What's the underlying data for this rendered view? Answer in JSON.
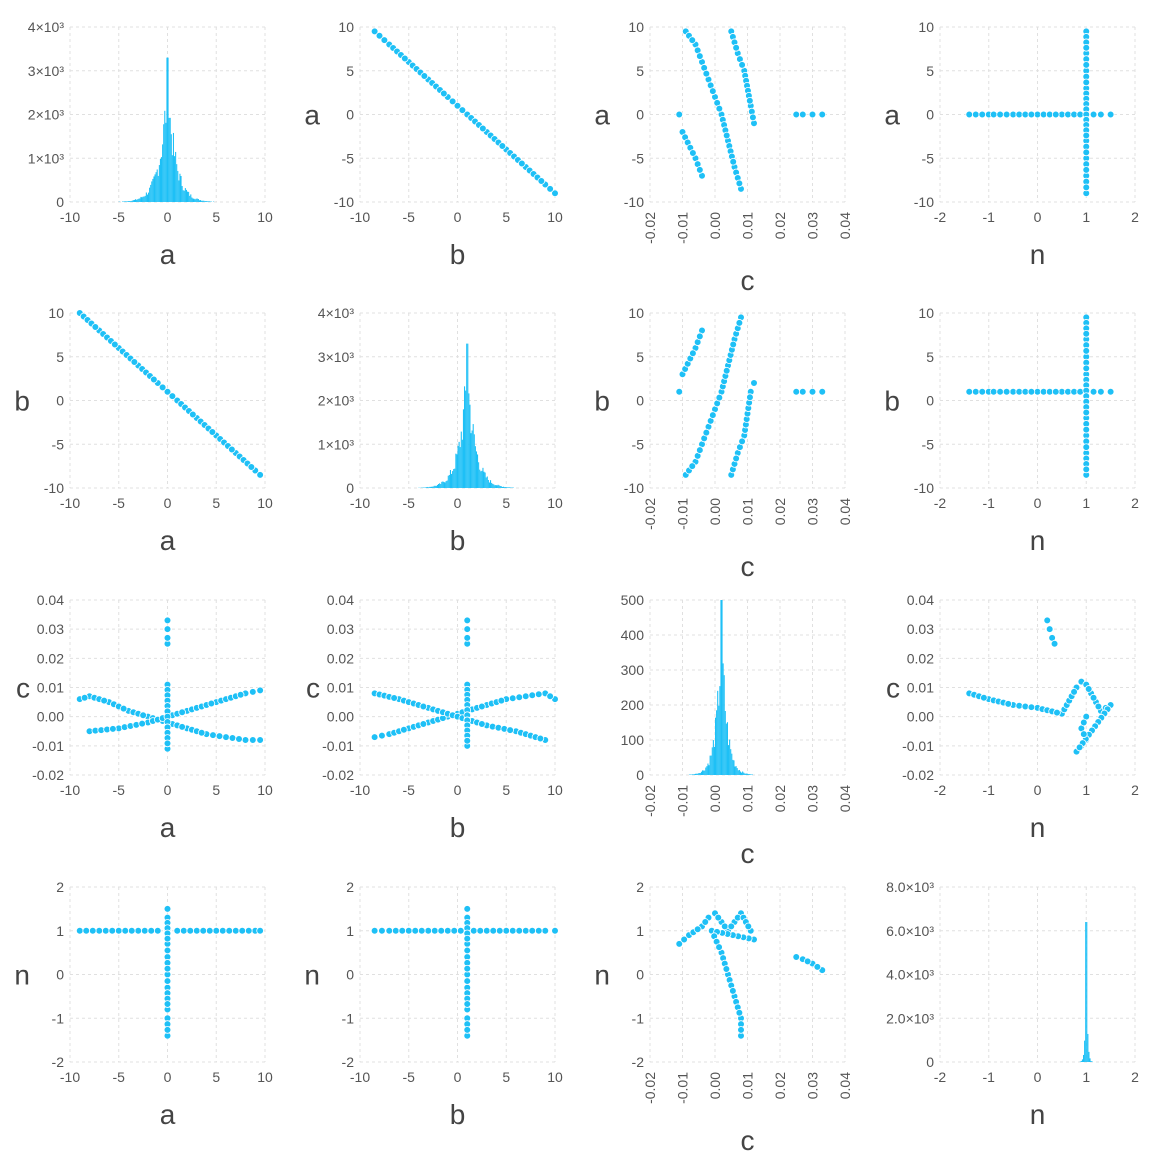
{
  "colors": {
    "marker": "#1ec0f6",
    "bar": "#1ec0f6",
    "grid": "#e0e0e0",
    "text": "#555555"
  },
  "variables": [
    "a",
    "b",
    "c",
    "n"
  ],
  "chart_data": [
    {
      "row": "a",
      "col": "a",
      "type": "histogram",
      "xlabel": "a",
      "xlim": [
        -10,
        10
      ],
      "ylim": [
        0,
        4000
      ],
      "xticks": [
        "-10",
        "-5",
        "0",
        "5",
        "10"
      ],
      "yticks": [
        "0",
        "1×10³",
        "2×10³",
        "3×10³",
        "4×10³"
      ],
      "peak_x": 0,
      "peak_y": 3300,
      "spread": 1.5
    },
    {
      "row": "a",
      "col": "b",
      "type": "scatter",
      "xlabel": "b",
      "ylabel": "a",
      "xlim": [
        -10,
        10
      ],
      "ylim": [
        -10,
        10
      ],
      "xticks": [
        "-10",
        "-5",
        "0",
        "5",
        "10"
      ],
      "yticks": [
        "-10",
        "-5",
        "0",
        "5",
        "10"
      ],
      "points": [
        [
          -8.5,
          9.5
        ],
        [
          -7,
          8
        ],
        [
          -5,
          6
        ],
        [
          -3,
          4
        ],
        [
          -1,
          2
        ],
        [
          0,
          1
        ],
        [
          1,
          0
        ],
        [
          3,
          -2
        ],
        [
          5,
          -4
        ],
        [
          7,
          -6
        ],
        [
          9,
          -8
        ],
        [
          10,
          -9
        ]
      ]
    },
    {
      "row": "a",
      "col": "c",
      "type": "scatter",
      "xlabel": "c",
      "ylabel": "a",
      "xlim": [
        -0.02,
        0.04
      ],
      "ylim": [
        -10,
        10
      ],
      "xticks": [
        "-0.02",
        "-0.01",
        "0.00",
        "0.01",
        "0.02",
        "0.03",
        "0.04"
      ],
      "yticks": [
        "-10",
        "-5",
        "0",
        "5",
        "10"
      ],
      "points": [
        [
          -0.011,
          0
        ],
        [
          -0.009,
          9.5
        ],
        [
          -0.006,
          8
        ],
        [
          -0.004,
          6
        ],
        [
          -0.002,
          4
        ],
        [
          0,
          2
        ],
        [
          0.002,
          0
        ],
        [
          0.004,
          -3
        ],
        [
          0.006,
          -6
        ],
        [
          0.008,
          -8.5
        ],
        [
          0.005,
          9.5
        ],
        [
          0.007,
          7
        ],
        [
          0.009,
          5
        ],
        [
          0.011,
          1
        ],
        [
          0.012,
          -1
        ],
        [
          -0.01,
          -2
        ],
        [
          -0.006,
          -5
        ],
        [
          -0.004,
          -7
        ],
        [
          0.025,
          0
        ],
        [
          0.027,
          0
        ],
        [
          0.03,
          0
        ],
        [
          0.033,
          0
        ]
      ]
    },
    {
      "row": "a",
      "col": "n",
      "type": "scatter",
      "xlabel": "n",
      "ylabel": "a",
      "xlim": [
        -2,
        2
      ],
      "ylim": [
        -10,
        10
      ],
      "xticks": [
        "-2",
        "-1",
        "0",
        "1",
        "2"
      ],
      "yticks": [
        "-10",
        "-5",
        "0",
        "5",
        "10"
      ],
      "points": [
        [
          -1.4,
          0
        ],
        [
          -1,
          0
        ],
        [
          -0.9,
          0
        ],
        [
          -0.5,
          0
        ],
        [
          0,
          0
        ],
        [
          0.5,
          0
        ],
        [
          1,
          0
        ],
        [
          1.3,
          0
        ],
        [
          1.5,
          0
        ],
        [
          1,
          9.5
        ],
        [
          1,
          7
        ],
        [
          1,
          5
        ],
        [
          1,
          3
        ],
        [
          1,
          -3
        ],
        [
          1,
          -5
        ],
        [
          1,
          -7
        ],
        [
          1,
          -9
        ]
      ]
    },
    {
      "row": "b",
      "col": "a",
      "type": "scatter",
      "xlabel": "a",
      "ylabel": "b",
      "xlim": [
        -10,
        10
      ],
      "ylim": [
        -10,
        10
      ],
      "xticks": [
        "-10",
        "-5",
        "0",
        "5",
        "10"
      ],
      "yticks": [
        "-10",
        "-5",
        "0",
        "5",
        "10"
      ],
      "points": [
        [
          -9,
          10
        ],
        [
          -7,
          8
        ],
        [
          -5,
          6
        ],
        [
          -3,
          4
        ],
        [
          -1,
          2
        ],
        [
          0,
          1
        ],
        [
          1,
          0
        ],
        [
          3,
          -2
        ],
        [
          5,
          -4
        ],
        [
          7,
          -6
        ],
        [
          9,
          -8
        ],
        [
          9.5,
          -8.5
        ]
      ]
    },
    {
      "row": "b",
      "col": "b",
      "type": "histogram",
      "xlabel": "b",
      "xlim": [
        -10,
        10
      ],
      "ylim": [
        0,
        4000
      ],
      "xticks": [
        "-10",
        "-5",
        "0",
        "5",
        "10"
      ],
      "yticks": [
        "0",
        "1×10³",
        "2×10³",
        "3×10³",
        "4×10³"
      ],
      "peak_x": 1,
      "peak_y": 3300,
      "spread": 1.5
    },
    {
      "row": "b",
      "col": "c",
      "type": "scatter",
      "xlabel": "c",
      "ylabel": "b",
      "xlim": [
        -0.02,
        0.04
      ],
      "ylim": [
        -10,
        10
      ],
      "xticks": [
        "-0.02",
        "-0.01",
        "0.00",
        "0.01",
        "0.02",
        "0.03",
        "0.04"
      ],
      "yticks": [
        "-10",
        "-5",
        "0",
        "5",
        "10"
      ],
      "points": [
        [
          -0.011,
          1
        ],
        [
          -0.009,
          -8.5
        ],
        [
          -0.006,
          -7
        ],
        [
          -0.004,
          -5
        ],
        [
          -0.002,
          -3
        ],
        [
          0,
          -1
        ],
        [
          0.002,
          1
        ],
        [
          0.004,
          4
        ],
        [
          0.006,
          7
        ],
        [
          0.008,
          9.5
        ],
        [
          0.005,
          -8.5
        ],
        [
          0.007,
          -6
        ],
        [
          0.009,
          -4
        ],
        [
          0.011,
          1
        ],
        [
          0.012,
          2
        ],
        [
          -0.01,
          3
        ],
        [
          -0.006,
          6
        ],
        [
          -0.004,
          8
        ],
        [
          0.025,
          1
        ],
        [
          0.027,
          1
        ],
        [
          0.03,
          1
        ],
        [
          0.033,
          1
        ]
      ]
    },
    {
      "row": "b",
      "col": "n",
      "type": "scatter",
      "xlabel": "n",
      "ylabel": "b",
      "xlim": [
        -2,
        2
      ],
      "ylim": [
        -10,
        10
      ],
      "xticks": [
        "-2",
        "-1",
        "0",
        "1",
        "2"
      ],
      "yticks": [
        "-10",
        "-5",
        "0",
        "5",
        "10"
      ],
      "points": [
        [
          -1.4,
          1
        ],
        [
          -1,
          1
        ],
        [
          -0.9,
          1
        ],
        [
          -0.5,
          1
        ],
        [
          0,
          1
        ],
        [
          0.5,
          1
        ],
        [
          1,
          1
        ],
        [
          1.3,
          1
        ],
        [
          1.5,
          1
        ],
        [
          1,
          9.5
        ],
        [
          1,
          7
        ],
        [
          1,
          5
        ],
        [
          1,
          3
        ],
        [
          1,
          -2
        ],
        [
          1,
          -4
        ],
        [
          1,
          -6
        ],
        [
          1,
          -8.5
        ]
      ]
    },
    {
      "row": "c",
      "col": "a",
      "type": "scatter",
      "xlabel": "a",
      "ylabel": "c",
      "xlim": [
        -10,
        10
      ],
      "ylim": [
        -0.02,
        0.04
      ],
      "xticks": [
        "-10",
        "-5",
        "0",
        "5",
        "10"
      ],
      "yticks": [
        "-0.02",
        "-0.01",
        "0.00",
        "0.01",
        "0.02",
        "0.03",
        "0.04"
      ],
      "points": [
        [
          -9,
          0.006
        ],
        [
          -8,
          0.007
        ],
        [
          -6,
          0.005
        ],
        [
          -4,
          0.002
        ],
        [
          -2,
          0
        ],
        [
          0,
          -0.002
        ],
        [
          2,
          -0.004
        ],
        [
          4,
          -0.006
        ],
        [
          6,
          -0.007
        ],
        [
          8,
          -0.008
        ],
        [
          9.5,
          -0.008
        ],
        [
          -8,
          -0.005
        ],
        [
          -5,
          -0.004
        ],
        [
          -2,
          -0.002
        ],
        [
          2,
          0.002
        ],
        [
          5,
          0.005
        ],
        [
          8,
          0.008
        ],
        [
          9.5,
          0.009
        ],
        [
          0,
          0.011
        ],
        [
          0,
          -0.011
        ],
        [
          0,
          0.025
        ],
        [
          0,
          0.027
        ],
        [
          0,
          0.03
        ],
        [
          0,
          0.033
        ]
      ]
    },
    {
      "row": "c",
      "col": "b",
      "type": "scatter",
      "xlabel": "b",
      "ylabel": "c",
      "xlim": [
        -10,
        10
      ],
      "ylim": [
        -0.02,
        0.04
      ],
      "xticks": [
        "-10",
        "-5",
        "0",
        "5",
        "10"
      ],
      "yticks": [
        "-0.02",
        "-0.01",
        "0.00",
        "0.01",
        "0.02",
        "0.03",
        "0.04"
      ],
      "points": [
        [
          -8.5,
          -0.007
        ],
        [
          -7,
          -0.006
        ],
        [
          -5,
          -0.004
        ],
        [
          -3,
          -0.002
        ],
        [
          -1,
          0
        ],
        [
          1,
          0.002
        ],
        [
          3,
          0.004
        ],
        [
          5,
          0.006
        ],
        [
          7,
          0.007
        ],
        [
          9,
          0.008
        ],
        [
          10,
          0.006
        ],
        [
          -8.5,
          0.008
        ],
        [
          -6,
          0.006
        ],
        [
          -3,
          0.003
        ],
        [
          3,
          -0.003
        ],
        [
          6,
          -0.005
        ],
        [
          9,
          -0.008
        ],
        [
          1,
          0.011
        ],
        [
          1,
          -0.01
        ],
        [
          1,
          0.025
        ],
        [
          1,
          0.027
        ],
        [
          1,
          0.03
        ],
        [
          1,
          0.033
        ]
      ]
    },
    {
      "row": "c",
      "col": "c",
      "type": "histogram",
      "xlabel": "c",
      "xlim": [
        -0.02,
        0.04
      ],
      "ylim": [
        0,
        500
      ],
      "xticks": [
        "-0.02",
        "-0.01",
        "0.00",
        "0.01",
        "0.02",
        "0.03",
        "0.04"
      ],
      "yticks": [
        "0",
        "100",
        "200",
        "300",
        "400",
        "500"
      ],
      "peak_x": 0.002,
      "peak_y": 500,
      "spread": 0.003
    },
    {
      "row": "c",
      "col": "n",
      "type": "scatter",
      "xlabel": "n",
      "ylabel": "c",
      "xlim": [
        -2,
        2
      ],
      "ylim": [
        -0.02,
        0.04
      ],
      "xticks": [
        "-2",
        "-1",
        "0",
        "1",
        "2"
      ],
      "yticks": [
        "-0.02",
        "-0.01",
        "0.00",
        "0.01",
        "0.02",
        "0.03",
        "0.04"
      ],
      "points": [
        [
          -1.4,
          0.008
        ],
        [
          -1,
          0.006
        ],
        [
          -0.5,
          0.004
        ],
        [
          0,
          0.003
        ],
        [
          0.5,
          0.001
        ],
        [
          0.8,
          0.01
        ],
        [
          0.9,
          0.012
        ],
        [
          1,
          0.011
        ],
        [
          1.1,
          0.008
        ],
        [
          1.2,
          0.005
        ],
        [
          1.3,
          0.002
        ],
        [
          1.5,
          0.004
        ],
        [
          0.8,
          -0.012
        ],
        [
          0.9,
          -0.01
        ],
        [
          1,
          -0.008
        ],
        [
          0.9,
          -0.004
        ],
        [
          1,
          0
        ],
        [
          0.2,
          0.033
        ],
        [
          0.25,
          0.03
        ],
        [
          0.3,
          0.027
        ],
        [
          0.35,
          0.025
        ]
      ]
    },
    {
      "row": "n",
      "col": "a",
      "type": "scatter",
      "xlabel": "a",
      "ylabel": "n",
      "xlim": [
        -10,
        10
      ],
      "ylim": [
        -2,
        2
      ],
      "xticks": [
        "-10",
        "-5",
        "0",
        "5",
        "10"
      ],
      "yticks": [
        "-2",
        "-1",
        "0",
        "1",
        "2"
      ],
      "points": [
        [
          -9,
          1
        ],
        [
          -7,
          1
        ],
        [
          -5,
          1
        ],
        [
          -3,
          1
        ],
        [
          -1,
          1
        ],
        [
          0,
          1
        ],
        [
          1,
          1
        ],
        [
          3,
          1
        ],
        [
          5,
          1
        ],
        [
          7,
          1
        ],
        [
          9,
          1
        ],
        [
          9.5,
          1
        ],
        [
          0,
          1.5
        ],
        [
          0,
          1.3
        ],
        [
          0,
          0.7
        ],
        [
          0,
          0.4
        ],
        [
          0,
          0
        ],
        [
          0,
          -0.3
        ],
        [
          0,
          -0.8
        ],
        [
          0,
          -1
        ],
        [
          0,
          -1.4
        ]
      ]
    },
    {
      "row": "n",
      "col": "b",
      "type": "scatter",
      "xlabel": "b",
      "ylabel": "n",
      "xlim": [
        -10,
        10
      ],
      "ylim": [
        -2,
        2
      ],
      "xticks": [
        "-10",
        "-5",
        "0",
        "5",
        "10"
      ],
      "yticks": [
        "-2",
        "-1",
        "0",
        "1",
        "2"
      ],
      "points": [
        [
          -8.5,
          1
        ],
        [
          -7,
          1
        ],
        [
          -5,
          1
        ],
        [
          -3,
          1
        ],
        [
          -1,
          1
        ],
        [
          1,
          1
        ],
        [
          3,
          1
        ],
        [
          5,
          1
        ],
        [
          7,
          1
        ],
        [
          9,
          1
        ],
        [
          10,
          1
        ],
        [
          1,
          1.5
        ],
        [
          1,
          1.3
        ],
        [
          1,
          0.7
        ],
        [
          1,
          0.4
        ],
        [
          1,
          0
        ],
        [
          1,
          -0.3
        ],
        [
          1,
          -0.8
        ],
        [
          1,
          -1
        ],
        [
          1,
          -1.4
        ]
      ]
    },
    {
      "row": "n",
      "col": "c",
      "type": "scatter",
      "xlabel": "c",
      "ylabel": "n",
      "xlim": [
        -0.02,
        0.04
      ],
      "ylim": [
        -2,
        2
      ],
      "xticks": [
        "-0.02",
        "-0.01",
        "0.00",
        "0.01",
        "0.02",
        "0.03",
        "0.04"
      ],
      "yticks": [
        "-2",
        "-1",
        "0",
        "1",
        "2"
      ],
      "points": [
        [
          -0.011,
          0.7
        ],
        [
          -0.008,
          0.9
        ],
        [
          -0.004,
          1.1
        ],
        [
          -0.002,
          1.3
        ],
        [
          0,
          1.4
        ],
        [
          0.002,
          1.2
        ],
        [
          0.004,
          1.0
        ],
        [
          0.006,
          1.2
        ],
        [
          0.008,
          1.4
        ],
        [
          0.011,
          1
        ],
        [
          0.012,
          0.8
        ],
        [
          -0.001,
          1.0
        ],
        [
          0.002,
          0.5
        ],
        [
          0.004,
          0
        ],
        [
          0.006,
          -0.5
        ],
        [
          0.008,
          -1
        ],
        [
          0.008,
          -1.4
        ],
        [
          0.025,
          0.4
        ],
        [
          0.027,
          0.35
        ],
        [
          0.03,
          0.25
        ],
        [
          0.033,
          0.1
        ]
      ]
    },
    {
      "row": "n",
      "col": "n",
      "type": "histogram",
      "xlabel": "n",
      "xlim": [
        -2,
        2
      ],
      "ylim": [
        0,
        8000
      ],
      "xticks": [
        "-2",
        "-1",
        "0",
        "1",
        "2"
      ],
      "yticks": [
        "0",
        "2.0×10³",
        "4.0×10³",
        "6.0×10³",
        "8.0×10³"
      ],
      "peak_x": 1,
      "peak_y": 6400,
      "spread": 0.04
    }
  ]
}
